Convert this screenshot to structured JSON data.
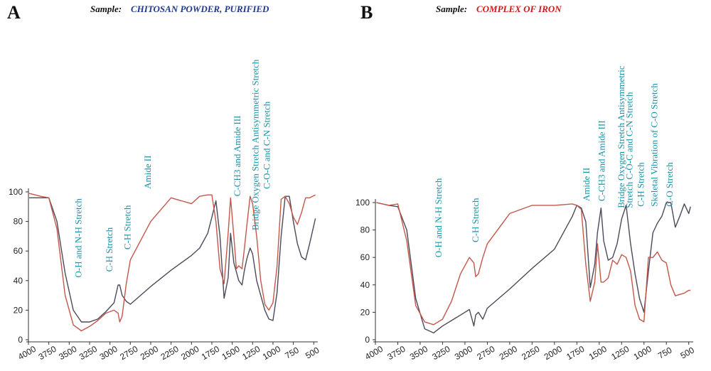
{
  "chart_data": [
    {
      "type": "line",
      "panel_label": "A",
      "sample_prefix": "Sample:",
      "sample_name": "CHITOSAN POWDER, PURIFIED",
      "sample_color": "#1f3a8c",
      "xlim": [
        4000,
        450
      ],
      "ylim": [
        0,
        100
      ],
      "x_ticks": [
        "4000",
        "3750",
        "3500",
        "3250",
        "3000",
        "2750",
        "2500",
        "2250",
        "2000",
        "1750",
        "1500",
        "1250",
        "1000",
        "750",
        "500"
      ],
      "y_ticks": [
        "0",
        "20",
        "40",
        "60",
        "80",
        "100"
      ],
      "annotations": [
        {
          "text": "O-H and N-H Stretch",
          "x": 3350,
          "y": 42
        },
        {
          "text": "C-H Stretch",
          "x": 2970,
          "y": 46
        },
        {
          "text": "C-H Stretch",
          "x": 2750,
          "y": 61
        },
        {
          "text": "Amide II",
          "x": 2500,
          "y": 102
        },
        {
          "text": "C-CH3 and Amide III",
          "x": 1400,
          "y": 97
        },
        {
          "text": "Bridge Oxygen Stretch Antisymmetric Stretch",
          "x": 1180,
          "y": 74
        },
        {
          "text": "C-O-C and C-N Stretch",
          "x": 1040,
          "y": 102
        }
      ],
      "series": [
        {
          "color": "#4a4a5a",
          "x": [
            3990,
            3850,
            3750,
            3650,
            3550,
            3450,
            3350,
            3250,
            3150,
            3050,
            2950,
            2900,
            2880,
            2850,
            2800,
            2750,
            2500,
            2250,
            2000,
            1900,
            1800,
            1750,
            1700,
            1650,
            1600,
            1550,
            1520,
            1480,
            1450,
            1420,
            1380,
            1350,
            1320,
            1280,
            1250,
            1200,
            1150,
            1100,
            1050,
            1000,
            950,
            900,
            850,
            800,
            750,
            700,
            650,
            600,
            550,
            480
          ],
          "y": [
            96,
            96,
            96,
            80,
            45,
            20,
            12,
            12,
            14,
            19,
            25,
            37,
            37,
            30,
            26,
            24,
            36,
            47,
            57,
            62,
            72,
            83,
            94,
            70,
            28,
            42,
            72,
            52,
            46,
            40,
            37,
            47,
            55,
            62,
            58,
            40,
            30,
            20,
            14,
            13,
            32,
            70,
            97,
            97,
            80,
            65,
            56,
            54,
            65,
            82
          ]
        },
        {
          "color": "#c4574a",
          "x": [
            3990,
            3850,
            3750,
            3650,
            3550,
            3450,
            3350,
            3250,
            3150,
            3050,
            2950,
            2900,
            2880,
            2850,
            2800,
            2750,
            2500,
            2250,
            2000,
            1900,
            1800,
            1750,
            1700,
            1650,
            1600,
            1550,
            1520,
            1480,
            1450,
            1420,
            1380,
            1350,
            1320,
            1280,
            1250,
            1200,
            1150,
            1100,
            1050,
            1000,
            950,
            900,
            850,
            800,
            750,
            700,
            650,
            600,
            550,
            480
          ],
          "y": [
            99,
            97,
            96,
            75,
            30,
            10,
            6,
            9,
            13,
            18,
            20,
            18,
            12,
            16,
            38,
            54,
            80,
            96,
            92,
            97,
            98,
            98,
            80,
            48,
            38,
            72,
            96,
            70,
            48,
            50,
            48,
            62,
            78,
            97,
            92,
            70,
            40,
            24,
            20,
            25,
            50,
            95,
            97,
            92,
            83,
            78,
            86,
            96,
            96,
            98
          ]
        }
      ]
    },
    {
      "type": "line",
      "panel_label": "B",
      "sample_prefix": "Sample:",
      "sample_name": "COMPLEX OF IRON",
      "sample_color": "#cc1a1a",
      "xlim": [
        4000,
        450
      ],
      "ylim": [
        0,
        100
      ],
      "x_ticks": [
        "4000",
        "3750",
        "3500",
        "3250",
        "3000",
        "2750",
        "2500",
        "2250",
        "2000",
        "1750",
        "1500",
        "1250",
        "1000",
        "750",
        "500"
      ],
      "y_ticks": [
        "0",
        "20",
        "40",
        "60",
        "80",
        "100"
      ],
      "annotations": [
        {
          "text": "O-H and N-H Stretch",
          "x": 3260,
          "y": 60
        },
        {
          "text": "C-H Stretch",
          "x": 2850,
          "y": 71
        },
        {
          "text": "Amide II",
          "x": 1610,
          "y": 101
        },
        {
          "text": "C-CH3 and Amide III",
          "x": 1440,
          "y": 101
        },
        {
          "text": "Bridge Oxygen Stretch Antisymmetric",
          "x": 1220,
          "y": 96
        },
        {
          "text": "Stretch C-O-C and C-N Stretch",
          "x": 1130,
          "y": 96
        },
        {
          "text": "C-H Stretch",
          "x": 1000,
          "y": 97
        },
        {
          "text": "Skeletal Vibration of C-O Stretch",
          "x": 850,
          "y": 97
        },
        {
          "text": "C-O Stretch",
          "x": 680,
          "y": 97
        }
      ],
      "series": [
        {
          "color": "#4a4a5a",
          "x": [
            3990,
            3850,
            3750,
            3650,
            3550,
            3450,
            3350,
            3250,
            3150,
            3050,
            2950,
            2900,
            2880,
            2850,
            2800,
            2750,
            2500,
            2250,
            2000,
            1800,
            1750,
            1700,
            1650,
            1600,
            1550,
            1520,
            1480,
            1450,
            1400,
            1350,
            1300,
            1250,
            1200,
            1150,
            1100,
            1050,
            1000,
            950,
            900,
            850,
            800,
            750,
            700,
            650,
            600,
            550,
            500,
            480
          ],
          "y": [
            100,
            98,
            97,
            80,
            30,
            8,
            5,
            10,
            14,
            18,
            22,
            10,
            18,
            20,
            15,
            23,
            37,
            52,
            66,
            90,
            98,
            96,
            86,
            38,
            55,
            78,
            96,
            72,
            58,
            60,
            70,
            88,
            98,
            70,
            48,
            30,
            20,
            50,
            78,
            85,
            90,
            100,
            100,
            82,
            90,
            99,
            92,
            97
          ]
        },
        {
          "color": "#c4574a",
          "x": [
            3990,
            3850,
            3750,
            3650,
            3550,
            3450,
            3350,
            3250,
            3150,
            3050,
            2950,
            2900,
            2880,
            2850,
            2800,
            2750,
            2500,
            2250,
            2000,
            1800,
            1750,
            1700,
            1650,
            1600,
            1550,
            1520,
            1480,
            1450,
            1400,
            1350,
            1300,
            1250,
            1200,
            1150,
            1100,
            1050,
            1000,
            950,
            900,
            850,
            800,
            750,
            700,
            650,
            600,
            550,
            500,
            480
          ],
          "y": [
            100,
            98,
            99,
            72,
            25,
            13,
            11,
            15,
            28,
            48,
            60,
            56,
            46,
            48,
            60,
            70,
            92,
            98,
            98,
            99,
            98,
            95,
            55,
            28,
            42,
            70,
            42,
            42,
            45,
            58,
            55,
            62,
            60,
            50,
            25,
            15,
            13,
            60,
            60,
            64,
            58,
            56,
            40,
            32,
            33,
            34,
            36,
            36
          ]
        }
      ]
    }
  ]
}
